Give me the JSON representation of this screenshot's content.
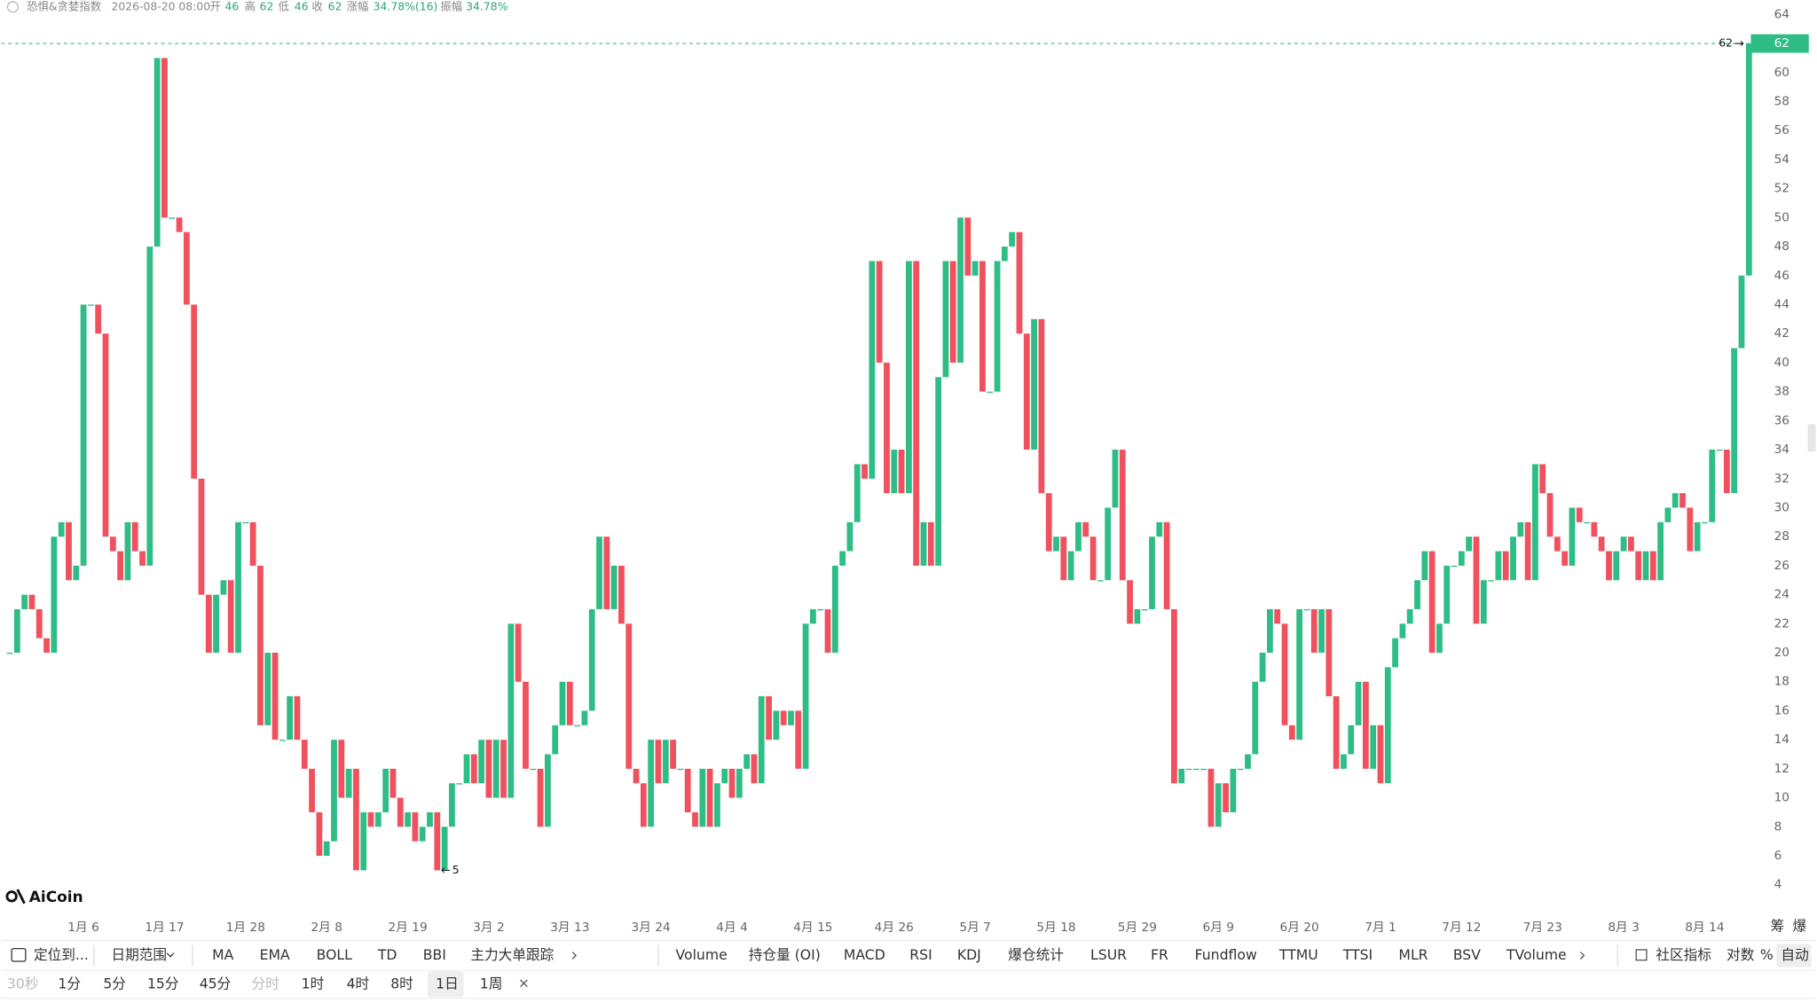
{
  "header": {
    "title": "恐惧&贪婪指数",
    "datetime": "2026-08-20 08:00",
    "open_label": "开",
    "open": 46,
    "high_label": "高",
    "high": 62,
    "low_label": "低",
    "low": 46,
    "close_label": "收",
    "close": 62,
    "change_label": "涨幅",
    "change": "34.78%(16)",
    "amplitude_label": "振幅",
    "amplitude": "34.78%"
  },
  "logo": "AiCoin",
  "chart_data": {
    "type": "candlestick",
    "categories": [
      null,
      null,
      null,
      null,
      null,
      null,
      null,
      null,
      null,
      null,
      "1月 6",
      null,
      null,
      null,
      null,
      null,
      null,
      null,
      null,
      null,
      null,
      "1月 17",
      null,
      null,
      null,
      null,
      null,
      null,
      null,
      null,
      null,
      null,
      "1月 28",
      null,
      null,
      null,
      null,
      null,
      null,
      null,
      null,
      null,
      null,
      "2月 8",
      null,
      null,
      null,
      null,
      null,
      null,
      null,
      null,
      null,
      null,
      "2月 19",
      null,
      null,
      null,
      null,
      null,
      null,
      null,
      null,
      null,
      null,
      "3月 2",
      null,
      null,
      null,
      null,
      null,
      null,
      null,
      null,
      null,
      null,
      "3月 13",
      null,
      null,
      null,
      null,
      null,
      null,
      null,
      null,
      null,
      null,
      "3月 24",
      null,
      null,
      null,
      null,
      null,
      null,
      null,
      null,
      null,
      null,
      "4月 4",
      null,
      null,
      null,
      null,
      null,
      null,
      null,
      null,
      null,
      null,
      "4月 15",
      null,
      null,
      null,
      null,
      null,
      null,
      null,
      null,
      null,
      null,
      "4月 26",
      null,
      null,
      null,
      null,
      null,
      null,
      null,
      null,
      null,
      null,
      "5月 7",
      null,
      null,
      null,
      null,
      null,
      null,
      null,
      null,
      null,
      null,
      "5月 18",
      null,
      null,
      null,
      null,
      null,
      null,
      null,
      null,
      null,
      null,
      "5月 29",
      null,
      null,
      null,
      null,
      null,
      null,
      null,
      null,
      null,
      null,
      "6月 9",
      null,
      null,
      null,
      null,
      null,
      null,
      null,
      null,
      null,
      null,
      "6月 20",
      null,
      null,
      null,
      null,
      null,
      null,
      null,
      null,
      null,
      null,
      "7月 1",
      null,
      null,
      null,
      null,
      null,
      null,
      null,
      null,
      null,
      null,
      "7月 12",
      null,
      null,
      null,
      null,
      null,
      null,
      null,
      null,
      null,
      null,
      "7月 23",
      null,
      null,
      null,
      null,
      null,
      null,
      null,
      null,
      null,
      null,
      "8月 3",
      null,
      null,
      null,
      null,
      null,
      null,
      null,
      null,
      null,
      null,
      "8月 14",
      null,
      null,
      null,
      null,
      null,
      null
    ],
    "open": [
      20,
      20,
      23,
      24,
      23,
      21,
      20,
      28,
      29,
      25,
      26,
      44,
      44,
      42,
      28,
      27,
      25,
      29,
      27,
      26,
      48,
      61,
      50,
      50,
      49,
      44,
      32,
      24,
      20,
      24,
      25,
      20,
      29,
      29,
      26,
      15,
      20,
      14,
      14,
      17,
      14,
      12,
      9,
      6,
      7,
      14,
      10,
      12,
      5,
      9,
      8,
      9,
      12,
      10,
      8,
      9,
      7,
      8,
      9,
      5,
      8,
      11,
      11,
      13,
      11,
      14,
      10,
      14,
      10,
      22,
      18,
      12,
      12,
      8,
      13,
      15,
      18,
      15,
      15,
      16,
      23,
      28,
      23,
      26,
      22,
      12,
      11,
      8,
      14,
      11,
      14,
      12,
      12,
      9,
      8,
      12,
      8,
      11,
      12,
      10,
      12,
      13,
      11,
      17,
      14,
      16,
      15,
      16,
      12,
      22,
      23,
      23,
      20,
      26,
      27,
      29,
      33,
      32,
      47,
      40,
      31,
      34,
      31,
      47,
      26,
      29,
      26,
      39,
      47,
      40,
      50,
      46,
      47,
      38,
      38,
      47,
      48,
      49,
      42,
      34,
      43,
      31,
      27,
      28,
      25,
      27,
      29,
      28,
      25,
      25,
      30,
      34,
      25,
      22,
      23,
      23,
      28,
      29,
      23,
      11,
      12,
      12,
      12,
      12,
      8,
      11,
      9,
      12,
      12,
      13,
      18,
      20,
      23,
      22,
      15,
      14,
      23,
      23,
      20,
      23,
      17,
      12,
      13,
      15,
      18,
      12,
      15,
      11,
      19,
      21,
      22,
      23,
      25,
      27,
      20,
      22,
      26,
      26,
      27,
      28,
      22,
      25,
      25,
      27,
      25,
      28,
      29,
      25,
      33,
      31,
      28,
      27,
      26,
      30,
      29,
      29,
      28,
      27,
      25,
      27,
      28,
      27,
      25,
      27,
      25,
      29,
      30,
      31,
      30,
      27,
      29,
      29,
      34,
      34,
      31,
      41,
      46
    ],
    "close": [
      20,
      23,
      24,
      23,
      21,
      20,
      28,
      29,
      25,
      26,
      44,
      44,
      42,
      28,
      27,
      25,
      29,
      27,
      26,
      48,
      61,
      50,
      50,
      49,
      44,
      32,
      24,
      20,
      24,
      25,
      20,
      29,
      29,
      26,
      15,
      20,
      14,
      14,
      17,
      14,
      12,
      9,
      6,
      7,
      14,
      10,
      12,
      5,
      9,
      8,
      9,
      12,
      10,
      8,
      9,
      7,
      8,
      9,
      5,
      8,
      11,
      11,
      13,
      11,
      14,
      10,
      14,
      10,
      22,
      18,
      12,
      12,
      8,
      13,
      15,
      18,
      15,
      15,
      16,
      23,
      28,
      23,
      26,
      22,
      12,
      11,
      8,
      14,
      11,
      14,
      12,
      12,
      9,
      8,
      12,
      8,
      11,
      12,
      10,
      12,
      13,
      11,
      17,
      14,
      16,
      15,
      16,
      12,
      22,
      23,
      23,
      20,
      26,
      27,
      29,
      33,
      32,
      47,
      40,
      31,
      34,
      31,
      47,
      26,
      29,
      26,
      39,
      47,
      40,
      50,
      46,
      47,
      38,
      38,
      47,
      48,
      49,
      42,
      34,
      43,
      31,
      27,
      28,
      25,
      27,
      29,
      28,
      25,
      25,
      30,
      34,
      25,
      22,
      23,
      23,
      28,
      29,
      23,
      11,
      12,
      12,
      12,
      12,
      8,
      11,
      9,
      12,
      12,
      13,
      18,
      20,
      23,
      22,
      15,
      14,
      23,
      23,
      20,
      23,
      17,
      12,
      13,
      15,
      18,
      12,
      15,
      11,
      19,
      21,
      22,
      23,
      25,
      27,
      20,
      22,
      26,
      26,
      27,
      28,
      22,
      25,
      25,
      27,
      25,
      28,
      29,
      25,
      33,
      31,
      28,
      27,
      26,
      30,
      29,
      29,
      28,
      27,
      25,
      27,
      28,
      27,
      25,
      27,
      25,
      29,
      30,
      31,
      30,
      27,
      29,
      29,
      34,
      34,
      31,
      41,
      46,
      62
    ],
    "up_color": "#2ebd85",
    "down_color": "#f0515e",
    "ylim": [
      2,
      65
    ],
    "yticks": [
      4,
      6,
      8,
      10,
      12,
      14,
      16,
      18,
      20,
      22,
      24,
      26,
      28,
      30,
      32,
      34,
      36,
      38,
      40,
      42,
      44,
      46,
      48,
      50,
      52,
      54,
      56,
      58,
      60,
      62,
      64
    ],
    "grid": false
  },
  "axis_extras": [
    "筹",
    "爆"
  ],
  "toolbar": {
    "locate": "定位到...",
    "date_range": "日期范围",
    "indicators_main": [
      "MA",
      "EMA",
      "BOLL",
      "TD",
      "BBI",
      "主力大单跟踪"
    ],
    "indicators_sub": [
      "Volume",
      "持仓量 (OI)",
      "MACD",
      "RSI",
      "KDJ",
      "爆仓统计",
      "LSUR",
      "FR",
      "Fundflow",
      "TTMU",
      "TTSI",
      "MLR",
      "BSV",
      "TVolume"
    ],
    "community": "社区指标",
    "log": "对数",
    "percent": "%",
    "auto": "自动",
    "intervals": [
      "30秒",
      "1分",
      "5分",
      "15分",
      "45分",
      "分时",
      "1时",
      "4时",
      "8时",
      "1日",
      "1周"
    ]
  }
}
